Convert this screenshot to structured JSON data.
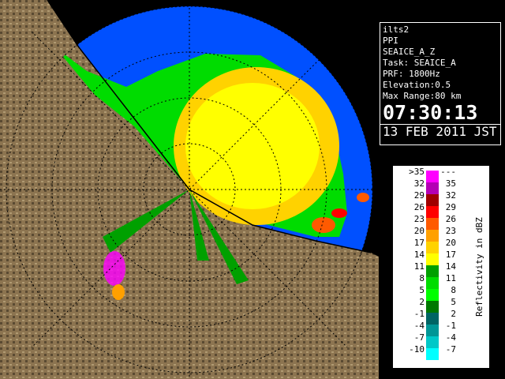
{
  "info": {
    "lines": [
      "ilts2",
      "PPI",
      "SEAICE_A_Z",
      "Task: SEAICE_A",
      "PRF: 1800Hz",
      "Elevation:0.5",
      "Max Range:80 km"
    ],
    "time": "07:30:13",
    "date": "13 FEB 2011 JST"
  },
  "legend": {
    "title": "Reflectivity in dBZ",
    "rows": [
      {
        "low": ">35",
        "high": "---",
        "color": "#ff00ff"
      },
      {
        "low": "32",
        "high": "35",
        "color": "#b400b4"
      },
      {
        "low": "29",
        "high": "32",
        "color": "#a00000"
      },
      {
        "low": "26",
        "high": "29",
        "color": "#ff0000"
      },
      {
        "low": "23",
        "high": "26",
        "color": "#ff5a00"
      },
      {
        "low": "20",
        "high": "23",
        "color": "#ffa000"
      },
      {
        "low": "17",
        "high": "20",
        "color": "#ffd200"
      },
      {
        "low": "14",
        "high": "17",
        "color": "#ffff00"
      },
      {
        "low": "11",
        "high": "14",
        "color": "#00a000"
      },
      {
        "low": "8",
        "high": "11",
        "color": "#00dc00"
      },
      {
        "low": "5",
        "high": "8",
        "color": "#00ff00"
      },
      {
        "low": "2",
        "high": "5",
        "color": "#007800"
      },
      {
        "low": "-1",
        "high": "2",
        "color": "#006464"
      },
      {
        "low": "-4",
        "high": "-1",
        "color": "#009696"
      },
      {
        "low": "-7",
        "high": "-4",
        "color": "#00c8c8"
      },
      {
        "low": "-10",
        "high": "-7",
        "color": "#00ffff"
      }
    ]
  }
}
